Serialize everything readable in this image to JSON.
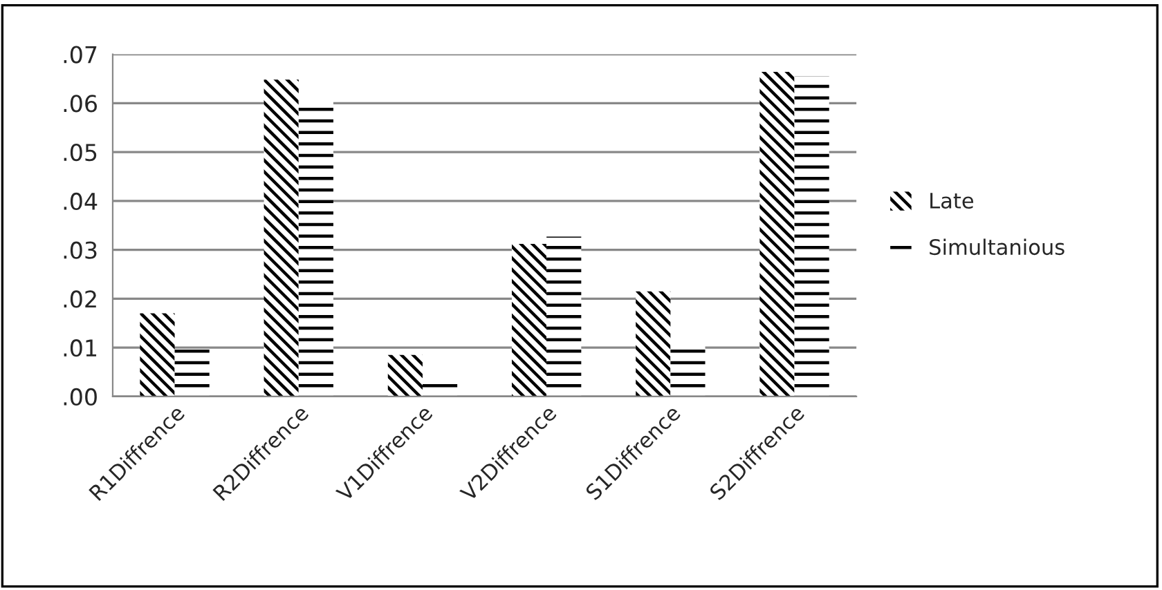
{
  "chart_data": {
    "type": "bar",
    "categories": [
      "R1Diffrence",
      "R2Diffrence",
      "V1Diffrence",
      "V2Diffrence",
      "S1Diffrence",
      "S2Diffrence"
    ],
    "series": [
      {
        "name": "Late",
        "color": "#000000",
        "values": [
          0.017,
          0.0648,
          0.0085,
          0.0312,
          0.0215,
          0.0664
        ]
      },
      {
        "name": "Simultanious",
        "color": "#000000",
        "values": [
          0.0096,
          0.0607,
          0.0028,
          0.0327,
          0.0108,
          0.0655
        ]
      }
    ],
    "ylim": [
      0,
      0.07
    ],
    "yticks": [
      {
        "value": 0,
        "label": ".00"
      },
      {
        "value": 0.01,
        "label": ".01"
      },
      {
        "value": 0.02,
        "label": ".02"
      },
      {
        "value": 0.03,
        "label": ".03"
      },
      {
        "value": 0.04,
        "label": ".04"
      },
      {
        "value": 0.05,
        "label": ".05"
      },
      {
        "value": 0.06,
        "label": ".06"
      },
      {
        "value": 0.07,
        "label": ".07"
      }
    ],
    "grid": "y",
    "legend": "right"
  }
}
